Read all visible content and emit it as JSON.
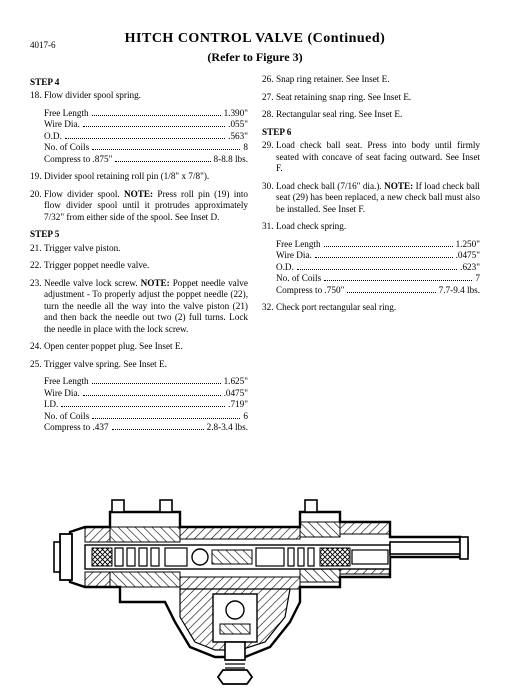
{
  "page_number": "4017-6",
  "title": "HITCH CONTROL VALVE (Continued)",
  "subtitle": "(Refer to Figure 3)",
  "left": {
    "step4": "STEP 4",
    "i18": {
      "n": "18.",
      "t": "Flow divider spool spring."
    },
    "t18": [
      {
        "label": "Free Length",
        "val": "1.390\""
      },
      {
        "label": "Wire Dia.",
        "val": ".055\""
      },
      {
        "label": "O.D.",
        "val": ".563\""
      },
      {
        "label": "No. of Coils",
        "val": "8"
      },
      {
        "label": "Compress to .875\"",
        "val": "8-8.8 lbs."
      }
    ],
    "i19": {
      "n": "19.",
      "t": "Divider spool retaining roll pin (1/8\" x 7/8\")."
    },
    "i20": {
      "n": "20.",
      "pre": "Flow divider spool. ",
      "note": "NOTE:",
      "post": " Press roll pin (19) into flow divider spool until it protrudes approximately 7/32\" from either side of the spool. See Inset D."
    },
    "step5": "STEP 5",
    "i21": {
      "n": "21.",
      "t": "Trigger valve piston."
    },
    "i22": {
      "n": "22.",
      "t": "Trigger poppet needle valve."
    },
    "i23": {
      "n": "23.",
      "pre": "Needle valve lock screw. ",
      "note": "NOTE:",
      "post": " Poppet needle valve adjustment - To properly adjust the poppet needle (22), turn the needle all the way into the valve piston (21) and then back the needle out two (2) full turns. Lock the needle in place with the lock screw."
    },
    "i24": {
      "n": "24.",
      "t": "Open center poppet plug. See Inset E."
    },
    "i25": {
      "n": "25.",
      "t": "Trigger valve spring. See Inset E."
    },
    "t25": [
      {
        "label": "Free Length",
        "val": "1.625\""
      },
      {
        "label": "Wire Dia.",
        "val": ".0475\""
      },
      {
        "label": "I.D.",
        "val": ".719\""
      },
      {
        "label": "No. of Coils",
        "val": "6"
      },
      {
        "label": "Compress to .437",
        "val": "2.8-3.4 lbs."
      }
    ]
  },
  "right": {
    "i26": {
      "n": "26.",
      "t": "Snap ring retainer. See Inset E."
    },
    "i27": {
      "n": "27.",
      "t": "Seat retaining snap ring. See Inset E."
    },
    "i28": {
      "n": "28.",
      "t": "Rectangular seal ring. See Inset E."
    },
    "step6": "STEP 6",
    "i29": {
      "n": "29.",
      "t": "Load check ball seat. Press into body until firmly seated with concave of seat facing outward. See Inset F."
    },
    "i30": {
      "n": "30.",
      "pre": "Load check ball (7/16\" dia.). ",
      "note": "NOTE:",
      "post": " If load check ball seat (29) has been replaced, a new check ball must also be installed. See Inset F."
    },
    "i31": {
      "n": "31.",
      "t": "Load check spring."
    },
    "t31": [
      {
        "label": "Free Length",
        "val": "1.250\""
      },
      {
        "label": "Wire Dia.",
        "val": ".0475\""
      },
      {
        "label": "O.D.",
        "val": ".623\""
      },
      {
        "label": "No. of Coils",
        "val": "7"
      },
      {
        "label": "Compress to .750\"",
        "val": "7.7-9.4 lbs."
      }
    ],
    "i32": {
      "n": "32.",
      "t": "Check port rectangular seal ring."
    }
  }
}
